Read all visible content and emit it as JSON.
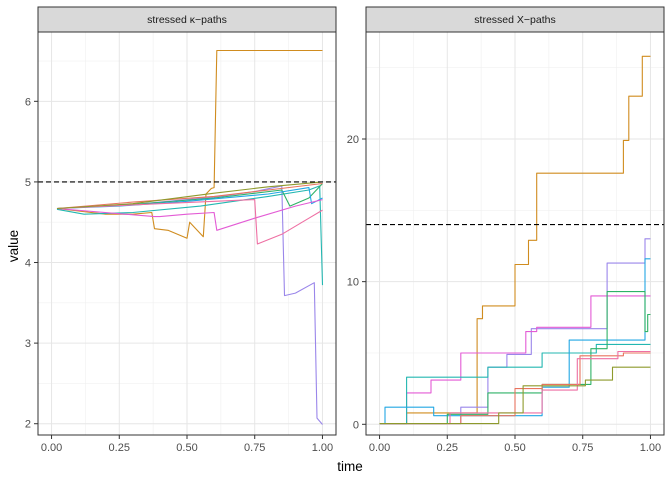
{
  "chart_data": {
    "type": "line",
    "xlabel": "time",
    "ylabel": "value",
    "colors": {
      "orange": "#D08C1F",
      "olive": "#8E9A2C",
      "green": "#2FB267",
      "teal": "#23B7B1",
      "blue": "#22A7E4",
      "purple": "#9A86EA",
      "magenta": "#E35BD5",
      "pink": "#EE6FA3",
      "red": "#E8735F"
    },
    "panels": [
      {
        "title": "stressed κ−paths",
        "xlim": [
          -0.05,
          1.05
        ],
        "ylim": [
          1.86,
          6.86
        ],
        "x_ticks": [
          0,
          0.25,
          0.5,
          0.75,
          1
        ],
        "x_tick_labels": [
          "0.00",
          "0.25",
          "0.50",
          "0.75",
          "1.00"
        ],
        "y_ticks": [
          2,
          3,
          4,
          5,
          6
        ],
        "y_tick_labels": [
          "2",
          "3",
          "4",
          "5",
          "6"
        ],
        "threshold": 5.0,
        "series": [
          {
            "name": "path-orange",
            "color": "orange",
            "points": [
              [
                0.02,
                4.67
              ],
              [
                0.2,
                4.6
              ],
              [
                0.3,
                4.6
              ],
              [
                0.37,
                4.62
              ],
              [
                0.38,
                4.42
              ],
              [
                0.43,
                4.4
              ],
              [
                0.5,
                4.3
              ],
              [
                0.51,
                4.5
              ],
              [
                0.56,
                4.32
              ],
              [
                0.57,
                4.85
              ],
              [
                0.59,
                4.92
              ],
              [
                0.6,
                4.93
              ],
              [
                0.61,
                6.63
              ],
              [
                1.0,
                6.63
              ]
            ]
          },
          {
            "name": "path-purple",
            "color": "purple",
            "points": [
              [
                0.02,
                4.67
              ],
              [
                0.3,
                4.72
              ],
              [
                0.5,
                4.78
              ],
              [
                0.62,
                4.82
              ],
              [
                0.75,
                4.88
              ],
              [
                0.85,
                4.95
              ],
              [
                0.86,
                3.59
              ],
              [
                0.9,
                3.62
              ],
              [
                0.97,
                3.75
              ],
              [
                0.98,
                2.07
              ],
              [
                1.0,
                1.99
              ]
            ]
          },
          {
            "name": "path-teal",
            "color": "teal",
            "points": [
              [
                0.02,
                4.66
              ],
              [
                0.12,
                4.6
              ],
              [
                0.3,
                4.62
              ],
              [
                0.55,
                4.7
              ],
              [
                0.8,
                4.82
              ],
              [
                0.95,
                4.9
              ],
              [
                0.99,
                4.95
              ],
              [
                1.0,
                3.72
              ]
            ]
          },
          {
            "name": "path-green",
            "color": "green",
            "points": [
              [
                0.02,
                4.67
              ],
              [
                0.3,
                4.72
              ],
              [
                0.6,
                4.8
              ],
              [
                0.85,
                4.9
              ],
              [
                0.88,
                4.7
              ],
              [
                0.95,
                4.8
              ],
              [
                1.0,
                4.98
              ]
            ]
          },
          {
            "name": "path-blue",
            "color": "blue",
            "points": [
              [
                0.02,
                4.67
              ],
              [
                0.25,
                4.7
              ],
              [
                0.5,
                4.76
              ],
              [
                0.8,
                4.85
              ],
              [
                0.95,
                4.93
              ],
              [
                0.96,
                4.73
              ],
              [
                1.0,
                4.8
              ]
            ]
          },
          {
            "name": "path-magenta",
            "color": "magenta",
            "points": [
              [
                0.02,
                4.67
              ],
              [
                0.38,
                4.57
              ],
              [
                0.4,
                4.57
              ],
              [
                0.5,
                4.6
              ],
              [
                0.6,
                4.62
              ],
              [
                0.61,
                4.4
              ],
              [
                0.75,
                4.55
              ],
              [
                0.9,
                4.7
              ],
              [
                1.0,
                4.78
              ]
            ]
          },
          {
            "name": "path-pink",
            "color": "pink",
            "points": [
              [
                0.02,
                4.67
              ],
              [
                0.4,
                4.73
              ],
              [
                0.75,
                4.78
              ],
              [
                0.76,
                4.23
              ],
              [
                0.85,
                4.35
              ],
              [
                0.95,
                4.55
              ],
              [
                1.0,
                4.65
              ]
            ]
          },
          {
            "name": "path-red",
            "color": "red",
            "points": [
              [
                0.02,
                4.67
              ],
              [
                0.3,
                4.75
              ],
              [
                0.6,
                4.82
              ],
              [
                0.8,
                4.9
              ],
              [
                1.0,
                4.98
              ]
            ]
          },
          {
            "name": "path-olive",
            "color": "olive",
            "points": [
              [
                0.02,
                4.67
              ],
              [
                0.3,
                4.73
              ],
              [
                0.6,
                4.86
              ],
              [
                0.8,
                4.94
              ],
              [
                1.0,
                5.0
              ]
            ]
          }
        ]
      },
      {
        "title": "stressed X−paths",
        "xlim": [
          -0.05,
          1.05
        ],
        "ylim": [
          -0.75,
          27.5
        ],
        "x_ticks": [
          0,
          0.25,
          0.5,
          0.75,
          1
        ],
        "x_tick_labels": [
          "0.00",
          "0.25",
          "0.50",
          "0.75",
          "1.00"
        ],
        "y_ticks": [
          0,
          10,
          20
        ],
        "y_tick_labels": [
          "0",
          "10",
          "20"
        ],
        "threshold": 14.0,
        "series": [
          {
            "name": "path-orange",
            "color": "orange",
            "points": [
              [
                0.0,
                0.05
              ],
              [
                0.1,
                0.05
              ],
              [
                0.1,
                0.8
              ],
              [
                0.36,
                0.8
              ],
              [
                0.36,
                7.4
              ],
              [
                0.38,
                7.4
              ],
              [
                0.38,
                8.3
              ],
              [
                0.5,
                8.3
              ],
              [
                0.5,
                11.2
              ],
              [
                0.55,
                11.2
              ],
              [
                0.55,
                12.9
              ],
              [
                0.58,
                12.9
              ],
              [
                0.58,
                17.6
              ],
              [
                0.9,
                17.6
              ],
              [
                0.9,
                19.9
              ],
              [
                0.92,
                19.9
              ],
              [
                0.92,
                23.0
              ],
              [
                0.97,
                23.0
              ],
              [
                0.97,
                25.8
              ],
              [
                1.0,
                25.8
              ]
            ]
          },
          {
            "name": "path-purple",
            "color": "purple",
            "points": [
              [
                0.0,
                0.05
              ],
              [
                0.3,
                0.05
              ],
              [
                0.3,
                1.2
              ],
              [
                0.4,
                1.2
              ],
              [
                0.4,
                4.0
              ],
              [
                0.47,
                4.0
              ],
              [
                0.47,
                4.9
              ],
              [
                0.56,
                4.9
              ],
              [
                0.56,
                6.7
              ],
              [
                0.84,
                6.7
              ],
              [
                0.84,
                11.3
              ],
              [
                0.98,
                11.3
              ],
              [
                0.98,
                13.0
              ],
              [
                1.0,
                13.0
              ]
            ]
          },
          {
            "name": "path-magenta",
            "color": "magenta",
            "points": [
              [
                0.0,
                0.05
              ],
              [
                0.1,
                0.05
              ],
              [
                0.1,
                2.2
              ],
              [
                0.19,
                2.2
              ],
              [
                0.19,
                3.1
              ],
              [
                0.3,
                3.1
              ],
              [
                0.3,
                5.0
              ],
              [
                0.54,
                5.0
              ],
              [
                0.54,
                6.5
              ],
              [
                0.58,
                6.5
              ],
              [
                0.58,
                6.8
              ],
              [
                0.78,
                6.8
              ],
              [
                0.78,
                9.0
              ],
              [
                1.0,
                9.0
              ]
            ]
          },
          {
            "name": "path-teal",
            "color": "teal",
            "points": [
              [
                0.0,
                0.05
              ],
              [
                0.1,
                0.05
              ],
              [
                0.1,
                3.3
              ],
              [
                0.4,
                3.3
              ],
              [
                0.4,
                4.0
              ],
              [
                0.6,
                4.0
              ],
              [
                0.6,
                5.0
              ],
              [
                0.8,
                5.0
              ],
              [
                0.8,
                5.6
              ],
              [
                1.0,
                5.6
              ]
            ]
          },
          {
            "name": "path-blue",
            "color": "blue",
            "points": [
              [
                0.0,
                0.05
              ],
              [
                0.02,
                0.05
              ],
              [
                0.02,
                1.2
              ],
              [
                0.2,
                1.2
              ],
              [
                0.2,
                0.6
              ],
              [
                0.6,
                0.6
              ],
              [
                0.6,
                2.6
              ],
              [
                0.7,
                2.6
              ],
              [
                0.7,
                5.9
              ],
              [
                0.98,
                5.9
              ],
              [
                0.98,
                11.6
              ],
              [
                1.0,
                11.6
              ]
            ]
          },
          {
            "name": "path-green",
            "color": "green",
            "points": [
              [
                0.0,
                0.05
              ],
              [
                0.25,
                0.05
              ],
              [
                0.25,
                0.7
              ],
              [
                0.4,
                0.7
              ],
              [
                0.4,
                2.2
              ],
              [
                0.6,
                2.2
              ],
              [
                0.6,
                2.8
              ],
              [
                0.78,
                2.8
              ],
              [
                0.78,
                5.3
              ],
              [
                0.84,
                5.3
              ],
              [
                0.84,
                9.3
              ],
              [
                0.98,
                9.3
              ],
              [
                0.98,
                6.5
              ],
              [
                0.99,
                6.5
              ],
              [
                0.99,
                7.7
              ],
              [
                1.0,
                7.7
              ]
            ]
          },
          {
            "name": "path-red",
            "color": "red",
            "points": [
              [
                0.0,
                0.05
              ],
              [
                0.3,
                0.05
              ],
              [
                0.3,
                0.6
              ],
              [
                0.5,
                0.6
              ],
              [
                0.5,
                2.5
              ],
              [
                0.6,
                2.5
              ],
              [
                0.6,
                2.8
              ],
              [
                0.74,
                2.8
              ],
              [
                0.74,
                4.8
              ],
              [
                0.9,
                4.8
              ],
              [
                0.9,
                5.0
              ],
              [
                1.0,
                5.0
              ]
            ]
          },
          {
            "name": "path-pink",
            "color": "pink",
            "points": [
              [
                0.0,
                0.05
              ],
              [
                0.26,
                0.05
              ],
              [
                0.26,
                0.8
              ],
              [
                0.6,
                0.8
              ],
              [
                0.6,
                2.4
              ],
              [
                0.73,
                2.4
              ],
              [
                0.73,
                4.6
              ],
              [
                0.88,
                4.6
              ],
              [
                0.88,
                5.1
              ],
              [
                1.0,
                5.1
              ]
            ]
          },
          {
            "name": "path-olive",
            "color": "olive",
            "points": [
              [
                0.0,
                0.05
              ],
              [
                0.44,
                0.05
              ],
              [
                0.44,
                0.8
              ],
              [
                0.53,
                0.8
              ],
              [
                0.53,
                2.7
              ],
              [
                0.76,
                2.7
              ],
              [
                0.76,
                3.1
              ],
              [
                0.86,
                3.1
              ],
              [
                0.86,
                4.0
              ],
              [
                1.0,
                4.0
              ]
            ]
          }
        ]
      }
    ]
  }
}
